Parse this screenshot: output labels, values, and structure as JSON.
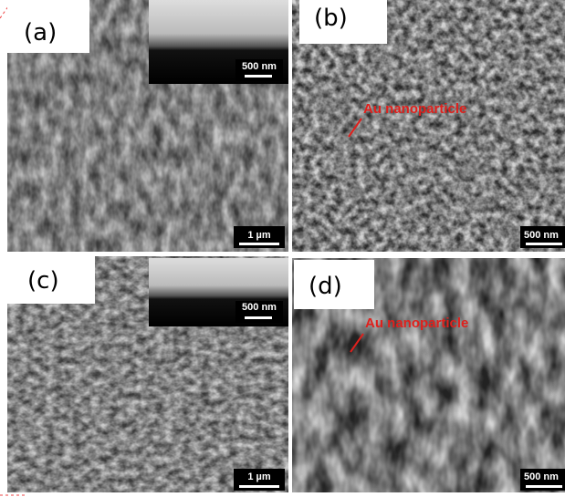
{
  "panels": [
    {
      "label": "(a)",
      "scale_bar": "1 µm",
      "inset_scale_bar": "500 nm"
    },
    {
      "label": "(b)",
      "scale_bar": "500 nm",
      "annotation": "Au nanoparticle"
    },
    {
      "label": "(c)",
      "scale_bar": "1 µm",
      "inset_scale_bar": "500 nm"
    },
    {
      "label": "(d)",
      "scale_bar": "500 nm",
      "annotation": "Au nanoparticle"
    }
  ]
}
